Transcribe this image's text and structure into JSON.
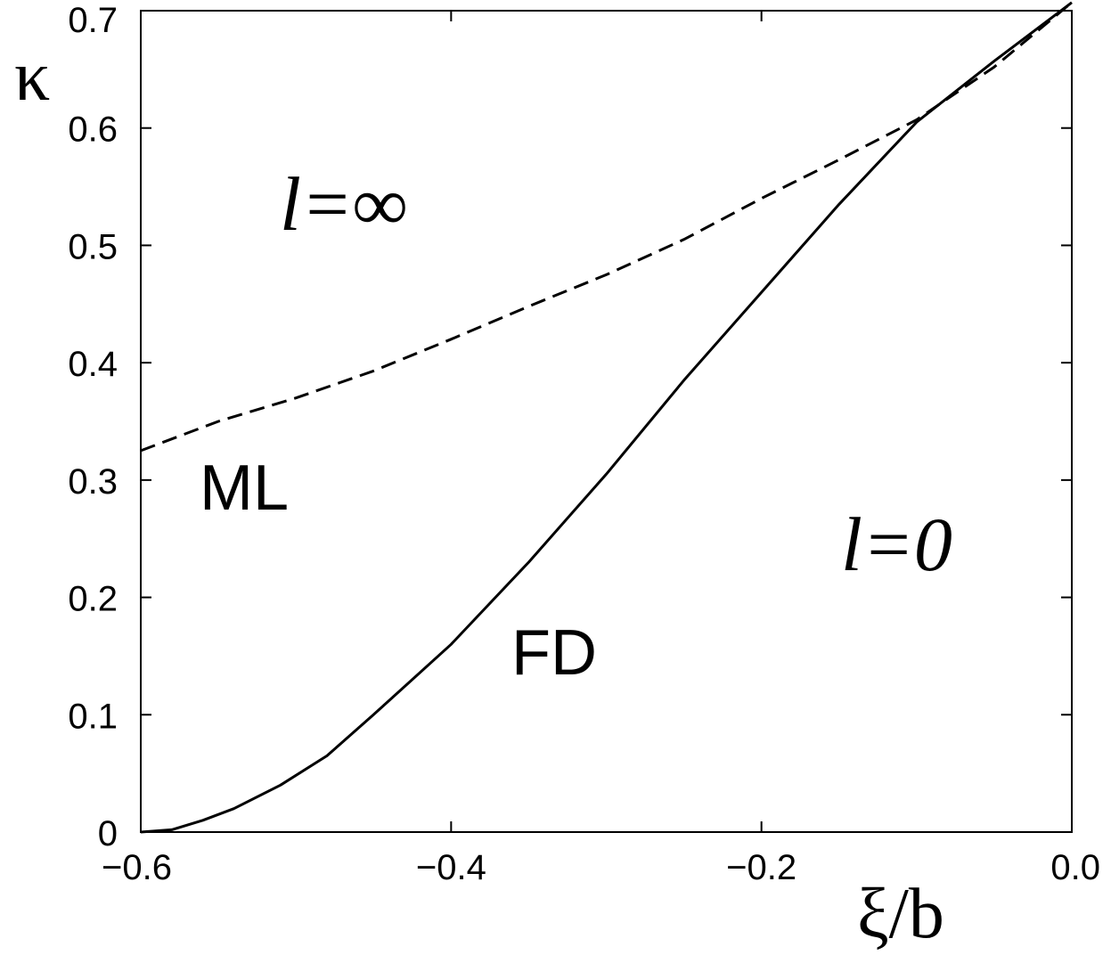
{
  "chart_data": {
    "type": "line",
    "xlabel": "ξ/b",
    "ylabel": "κ",
    "xlim": [
      -0.6,
      0.0
    ],
    "ylim": [
      0,
      0.7
    ],
    "x_ticks": [
      {
        "value": -0.6,
        "label": "−0.6"
      },
      {
        "value": -0.4,
        "label": "−0.4"
      },
      {
        "value": -0.2,
        "label": "−0.2"
      },
      {
        "value": 0.0,
        "label": "0.0"
      }
    ],
    "y_ticks": [
      {
        "value": 0.0,
        "label": "0"
      },
      {
        "value": 0.1,
        "label": "0.1"
      },
      {
        "value": 0.2,
        "label": "0.2"
      },
      {
        "value": 0.3,
        "label": "0.3"
      },
      {
        "value": 0.4,
        "label": "0.4"
      },
      {
        "value": 0.5,
        "label": "0.5"
      },
      {
        "value": 0.6,
        "label": "0.6"
      },
      {
        "value": 0.7,
        "label": "0.7"
      }
    ],
    "grid": false,
    "series": [
      {
        "style": "solid",
        "x": [
          -0.6,
          -0.58,
          -0.56,
          -0.54,
          -0.51,
          -0.48,
          -0.45,
          -0.4,
          -0.35,
          -0.3,
          -0.25,
          -0.2,
          -0.15,
          -0.1,
          -0.05,
          0.0
        ],
        "y": [
          0.0,
          0.002,
          0.01,
          0.02,
          0.04,
          0.065,
          0.1,
          0.16,
          0.23,
          0.305,
          0.385,
          0.46,
          0.535,
          0.605,
          0.657,
          0.707
        ]
      },
      {
        "style": "dashed",
        "x": [
          -0.6,
          -0.55,
          -0.5,
          -0.45,
          -0.4,
          -0.35,
          -0.3,
          -0.25,
          -0.2,
          -0.15,
          -0.1,
          -0.05,
          0.0
        ],
        "y": [
          0.325,
          0.35,
          0.37,
          0.393,
          0.42,
          0.448,
          0.475,
          0.505,
          0.54,
          0.573,
          0.607,
          0.652,
          0.707
        ]
      }
    ],
    "annotations": {
      "ml": "ML",
      "fd": "FD",
      "l_inf": "l=∞",
      "l_zero": "l=0"
    }
  }
}
